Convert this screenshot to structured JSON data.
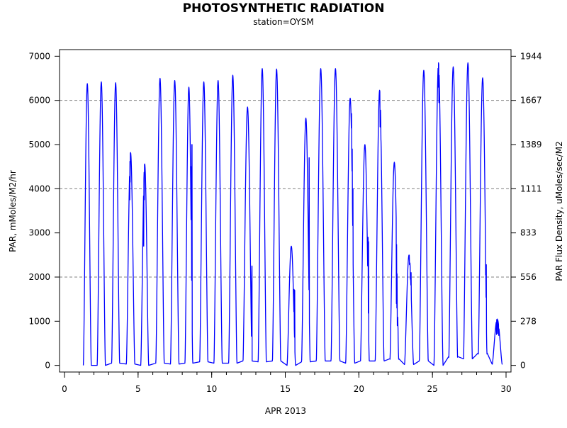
{
  "chart_data": {
    "type": "line",
    "title": "PHOTOSYNTHETIC RADIATION",
    "subtitle": "station=OYSM",
    "xlabel": "APR 2013",
    "ylabel": "PAR, mMoles/M2/hr",
    "y2label": "PAR Flux Density, uMoles/sec/M2",
    "xlim": [
      0,
      30
    ],
    "ylim": [
      -150,
      7150
    ],
    "x_ticks": [
      0,
      5,
      10,
      15,
      20,
      25,
      30
    ],
    "x_tick_labels": [
      "0",
      "5",
      "10",
      "15",
      "20",
      "25",
      "30"
    ],
    "x_minor_step": 1,
    "y_ticks": [
      0,
      1000,
      2000,
      3000,
      4000,
      5000,
      6000,
      7000
    ],
    "y_tick_labels": [
      "0",
      "1000",
      "2000",
      "3000",
      "4000",
      "5000",
      "6000",
      "7000"
    ],
    "y2_ticks": [
      0,
      1000,
      2000,
      3000,
      4000,
      5000,
      6000,
      7000
    ],
    "y2_tick_labels": [
      "0",
      "278",
      "556",
      "833",
      "1111",
      "1389",
      "1667",
      "1944"
    ],
    "gridlines_y": [
      2000,
      4000,
      6000
    ],
    "grid": "dashed horizontal at 2000, 4000, 6000",
    "line_color": "#0000ff",
    "series": [
      {
        "days": [
          {
            "day": 1,
            "rise": 1.28,
            "set": 1.82,
            "night_level": 0,
            "peak": 6380,
            "notches": []
          },
          {
            "day": 2,
            "rise": 2.22,
            "set": 2.78,
            "night_level": 0,
            "peak": 6420,
            "notches": []
          },
          {
            "day": 3,
            "rise": 3.2,
            "set": 3.75,
            "night_level": 50,
            "peak": 6400,
            "notches": []
          },
          {
            "day": 4,
            "rise": 4.2,
            "set": 4.78,
            "night_level": 30,
            "peak": 4820,
            "notches": [
              [
                4.43,
                3750
              ],
              [
                4.46,
                4150
              ]
            ]
          },
          {
            "day": 5,
            "rise": 5.18,
            "set": 5.72,
            "night_level": 0,
            "peak": 4560,
            "notches": [
              [
                5.38,
                2700
              ],
              [
                5.42,
                3750
              ]
            ]
          },
          {
            "day": 6,
            "rise": 6.2,
            "set": 6.78,
            "night_level": 50,
            "peak": 6500,
            "notches": []
          },
          {
            "day": 7,
            "rise": 7.2,
            "set": 7.78,
            "night_level": 30,
            "peak": 6450,
            "notches": []
          },
          {
            "day": 8,
            "rise": 8.18,
            "set": 8.72,
            "night_level": 50,
            "peak": 6300,
            "notches": [
              [
                8.62,
                4500
              ],
              [
                8.66,
                5000
              ]
            ]
          },
          {
            "day": 9,
            "rise": 9.18,
            "set": 9.75,
            "night_level": 80,
            "peak": 6420,
            "notches": []
          },
          {
            "day": 10,
            "rise": 10.15,
            "set": 10.72,
            "night_level": 50,
            "peak": 6450,
            "notches": []
          },
          {
            "day": 11,
            "rise": 11.15,
            "set": 11.72,
            "night_level": 50,
            "peak": 6570,
            "notches": []
          },
          {
            "day": 12,
            "rise": 12.12,
            "set": 12.75,
            "night_level": 100,
            "peak": 5850,
            "notches": [
              [
                12.72,
                1900
              ],
              [
                12.74,
                2250
              ]
            ]
          },
          {
            "day": 13,
            "rise": 13.15,
            "set": 13.72,
            "night_level": 80,
            "peak": 6720,
            "notches": []
          },
          {
            "day": 14,
            "rise": 14.12,
            "set": 14.7,
            "night_level": 100,
            "peak": 6710,
            "notches": []
          },
          {
            "day": 15,
            "rise": 15.12,
            "set": 15.7,
            "night_level": 0,
            "peak": 2700,
            "notches": [
              [
                15.6,
                1720
              ],
              [
                15.64,
                1700
              ]
            ]
          },
          {
            "day": 16,
            "rise": 16.1,
            "set": 16.7,
            "night_level": 80,
            "peak": 5600,
            "notches": [
              [
                16.62,
                4700
              ]
            ]
          },
          {
            "day": 17,
            "rise": 17.1,
            "set": 17.72,
            "night_level": 100,
            "peak": 6720,
            "notches": []
          },
          {
            "day": 18,
            "rise": 18.1,
            "set": 18.72,
            "night_level": 100,
            "peak": 6720,
            "notches": []
          },
          {
            "day": 19,
            "rise": 19.1,
            "set": 19.72,
            "night_level": 50,
            "peak": 6050,
            "notches": [
              [
                19.5,
                5700
              ],
              [
                19.55,
                4900
              ],
              [
                19.6,
                4000
              ]
            ]
          },
          {
            "day": 20,
            "rise": 20.1,
            "set": 20.72,
            "night_level": 100,
            "peak": 5000,
            "notches": [
              [
                20.62,
                2900
              ],
              [
                20.66,
                2800
              ]
            ]
          },
          {
            "day": 21,
            "rise": 21.1,
            "set": 21.72,
            "night_level": 100,
            "peak": 6230,
            "notches": [
              [
                21.45,
                5400
              ],
              [
                21.5,
                5100
              ]
            ]
          },
          {
            "day": 22,
            "rise": 22.1,
            "set": 22.72,
            "night_level": 150,
            "peak": 4600,
            "notches": [
              [
                22.55,
                1400
              ],
              [
                22.58,
                1300
              ],
              [
                22.62,
                900
              ],
              [
                22.66,
                850
              ]
            ]
          },
          {
            "day": 23,
            "rise": 23.1,
            "set": 23.72,
            "night_level": 20,
            "peak": 2500,
            "notches": [
              [
                23.45,
                2280
              ],
              [
                23.5,
                1950
              ],
              [
                23.55,
                2100
              ]
            ]
          },
          {
            "day": 24,
            "rise": 24.1,
            "set": 24.72,
            "night_level": 100,
            "peak": 6680,
            "notches": []
          },
          {
            "day": 25,
            "rise": 25.1,
            "set": 25.72,
            "night_level": 0,
            "peak": 6850,
            "notches": [
              [
                25.4,
                6300
              ],
              [
                25.44,
                5950
              ]
            ]
          },
          {
            "day": 26,
            "rise": 26.1,
            "set": 26.72,
            "night_level": 200,
            "peak": 6760,
            "notches": []
          },
          {
            "day": 27,
            "rise": 27.1,
            "set": 27.72,
            "night_level": 150,
            "peak": 6850,
            "notches": []
          },
          {
            "day": 28,
            "rise": 28.1,
            "set": 28.72,
            "night_level": 280,
            "peak": 6510,
            "notches": [
              [
                28.62,
                2050
              ],
              [
                28.66,
                2280
              ]
            ]
          },
          {
            "day": 29,
            "rise": 29.05,
            "set": 29.75,
            "night_level": 30,
            "peak": 1050,
            "notches": [
              [
                29.35,
                700
              ],
              [
                29.42,
                720
              ],
              [
                29.5,
                680
              ]
            ]
          }
        ]
      }
    ]
  }
}
